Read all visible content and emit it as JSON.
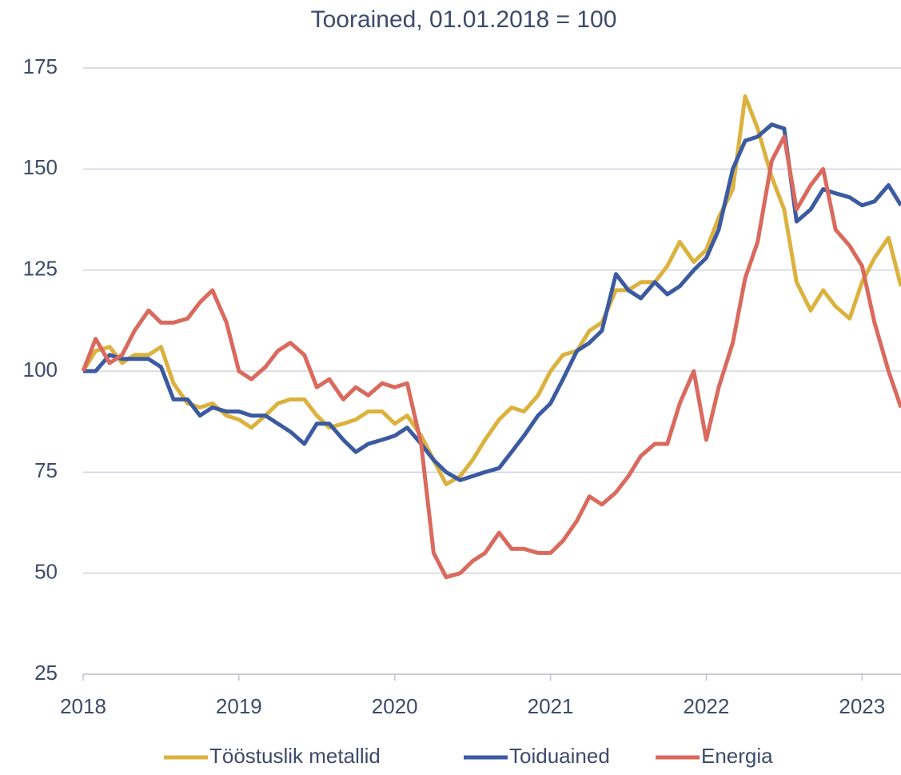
{
  "chart_data": {
    "type": "line",
    "title": "Toorained, 01.01.2018 = 100",
    "x": [
      2018.0,
      2018.08,
      2018.17,
      2018.25,
      2018.33,
      2018.42,
      2018.5,
      2018.58,
      2018.67,
      2018.75,
      2018.83,
      2018.92,
      2019.0,
      2019.08,
      2019.17,
      2019.25,
      2019.33,
      2019.42,
      2019.5,
      2019.58,
      2019.67,
      2019.75,
      2019.83,
      2019.92,
      2020.0,
      2020.08,
      2020.17,
      2020.25,
      2020.33,
      2020.42,
      2020.5,
      2020.58,
      2020.67,
      2020.75,
      2020.83,
      2020.92,
      2021.0,
      2021.08,
      2021.17,
      2021.25,
      2021.33,
      2021.42,
      2021.5,
      2021.58,
      2021.67,
      2021.75,
      2021.83,
      2021.92,
      2022.0,
      2022.08,
      2022.17,
      2022.25,
      2022.33,
      2022.42,
      2022.5,
      2022.58,
      2022.67,
      2022.75,
      2022.83,
      2022.92,
      2023.0,
      2023.08,
      2023.17,
      2023.25
    ],
    "series": [
      {
        "name": "Tööstuslik metallid",
        "color": "#dcb23e",
        "values": [
          100,
          105,
          106,
          102,
          104,
          104,
          106,
          97,
          92,
          91,
          92,
          89,
          88,
          86,
          89,
          92,
          93,
          93,
          89,
          86,
          87,
          88,
          90,
          90,
          87,
          89,
          84,
          78,
          72,
          74,
          78,
          83,
          88,
          91,
          90,
          94,
          100,
          104,
          105,
          110,
          112,
          120,
          120,
          122,
          122,
          126,
          132,
          127,
          130,
          138,
          145,
          168,
          160,
          148,
          140,
          122,
          115,
          120,
          116,
          113,
          122,
          128,
          133,
          121
        ]
      },
      {
        "name": "Toiduained",
        "color": "#3b5aa0",
        "values": [
          100,
          100,
          104,
          103,
          103,
          103,
          101,
          93,
          93,
          89,
          91,
          90,
          90,
          89,
          89,
          87,
          85,
          82,
          87,
          87,
          83,
          80,
          82,
          83,
          84,
          86,
          82,
          78,
          75,
          73,
          74,
          75,
          76,
          80,
          84,
          89,
          92,
          98,
          105,
          107,
          110,
          124,
          120,
          118,
          122,
          119,
          121,
          125,
          128,
          135,
          150,
          157,
          158,
          161,
          160,
          137,
          140,
          145,
          144,
          143,
          141,
          142,
          146,
          141
        ]
      },
      {
        "name": "Energia",
        "color": "#d96a5d",
        "values": [
          100,
          108,
          102,
          104,
          110,
          115,
          112,
          112,
          113,
          117,
          120,
          112,
          100,
          98,
          101,
          105,
          107,
          104,
          96,
          98,
          93,
          96,
          94,
          97,
          96,
          97,
          82,
          55,
          49,
          50,
          53,
          55,
          60,
          56,
          56,
          55,
          55,
          58,
          63,
          69,
          67,
          70,
          74,
          79,
          82,
          82,
          92,
          100,
          83,
          96,
          107,
          123,
          132,
          152,
          158,
          140,
          146,
          150,
          135,
          131,
          126,
          112,
          100,
          91
        ]
      }
    ],
    "xlim": [
      2018,
      2023.25
    ],
    "xticks": [
      2018,
      2019,
      2020,
      2021,
      2022,
      2023
    ],
    "ylim": [
      25,
      175
    ],
    "yticks": [
      25,
      50,
      75,
      100,
      125,
      150,
      175
    ],
    "grid": true,
    "legend": "bottom"
  }
}
